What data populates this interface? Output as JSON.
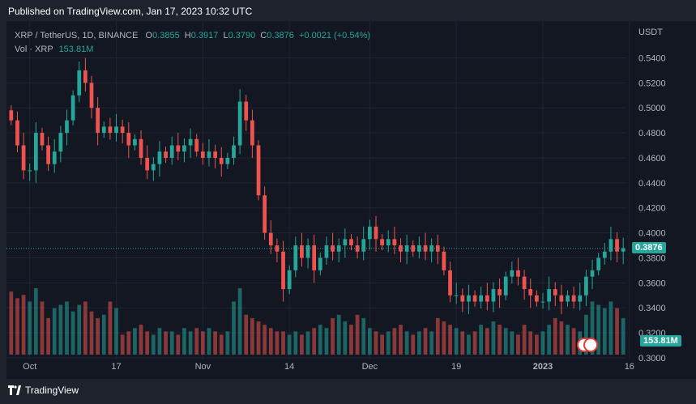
{
  "header": {
    "published": "Published on TradingView.com, Jan 17, 2023 10:32 UTC"
  },
  "legend": {
    "symbol": "XRP / TetherUS, 1D, BINANCE",
    "o_label": "O",
    "o": "0.3855",
    "h_label": "H",
    "h": "0.3917",
    "l_label": "L",
    "l": "0.3790",
    "c_label": "C",
    "c": "0.3876",
    "change": "+0.0021 (+0.54%)",
    "vol_label": "Vol · XRP",
    "vol": "153.81M"
  },
  "tags": {
    "price": "0.3876",
    "volume": "153.81M"
  },
  "footer": {
    "brand": "TradingView"
  },
  "colors": {
    "up": "#26a69a",
    "down": "#ef5350",
    "vol_up": "#26a69a",
    "vol_down": "#ef5350",
    "bg": "#131722"
  },
  "chart_data": {
    "type": "candlestick",
    "y_unit": "USDT",
    "ylim": [
      0.3,
      0.55
    ],
    "y_ticks": [
      "0.5400",
      "0.5200",
      "0.5000",
      "0.4800",
      "0.4600",
      "0.4400",
      "0.4200",
      "0.4000",
      "0.3800",
      "0.3600",
      "0.3400",
      "0.3200",
      "0.3000"
    ],
    "x_tick_labels": [
      "Oct",
      "17",
      "Nov",
      "14",
      "Dec",
      "19",
      "2023",
      "16"
    ],
    "x_tick_index": [
      3,
      17,
      31,
      45,
      58,
      72,
      86,
      100
    ],
    "last_close": 0.3876,
    "closes": [
      0.49,
      0.47,
      0.45,
      0.45,
      0.48,
      0.47,
      0.455,
      0.465,
      0.48,
      0.49,
      0.51,
      0.53,
      0.52,
      0.5,
      0.48,
      0.485,
      0.48,
      0.485,
      0.48,
      0.47,
      0.475,
      0.46,
      0.45,
      0.455,
      0.465,
      0.46,
      0.47,
      0.465,
      0.47,
      0.475,
      0.465,
      0.46,
      0.465,
      0.46,
      0.455,
      0.46,
      0.47,
      0.505,
      0.49,
      0.47,
      0.43,
      0.4,
      0.39,
      0.385,
      0.355,
      0.37,
      0.39,
      0.38,
      0.39,
      0.37,
      0.38,
      0.39,
      0.385,
      0.39,
      0.395,
      0.39,
      0.385,
      0.395,
      0.405,
      0.395,
      0.39,
      0.395,
      0.39,
      0.385,
      0.39,
      0.385,
      0.39,
      0.385,
      0.39,
      0.385,
      0.37,
      0.35,
      0.35,
      0.345,
      0.35,
      0.345,
      0.35,
      0.345,
      0.355,
      0.35,
      0.365,
      0.37,
      0.365,
      0.355,
      0.35,
      0.345,
      0.345,
      0.355,
      0.35,
      0.345,
      0.35,
      0.345,
      0.35,
      0.365,
      0.37,
      0.38,
      0.385,
      0.395,
      0.385,
      0.3876
    ],
    "volume_label": "Vol · XRP",
    "volume_last": "153.81M",
    "volumes": [
      0.95,
      0.85,
      0.9,
      0.8,
      1.0,
      0.8,
      0.55,
      0.7,
      0.75,
      0.8,
      0.65,
      0.75,
      0.8,
      0.65,
      0.55,
      0.6,
      0.8,
      0.7,
      0.3,
      0.35,
      0.4,
      0.45,
      0.35,
      0.3,
      0.4,
      0.35,
      0.35,
      0.3,
      0.4,
      0.35,
      0.4,
      0.35,
      0.4,
      0.35,
      0.3,
      0.35,
      0.8,
      1.0,
      0.6,
      0.55,
      0.5,
      0.45,
      0.4,
      0.35,
      0.35,
      0.3,
      0.35,
      0.3,
      0.35,
      0.4,
      0.45,
      0.4,
      0.55,
      0.6,
      0.5,
      0.45,
      0.6,
      0.55,
      0.4,
      0.35,
      0.3,
      0.35,
      0.4,
      0.45,
      0.35,
      0.3,
      0.35,
      0.4,
      0.35,
      0.55,
      0.5,
      0.45,
      0.4,
      0.35,
      0.3,
      0.35,
      0.45,
      0.4,
      0.5,
      0.45,
      0.4,
      0.35,
      0.3,
      0.45,
      0.35,
      0.3,
      0.35,
      0.45,
      0.55,
      0.5,
      0.45,
      0.4,
      0.35,
      0.6,
      0.8,
      0.75,
      0.7,
      0.8,
      0.7,
      0.55
    ]
  }
}
